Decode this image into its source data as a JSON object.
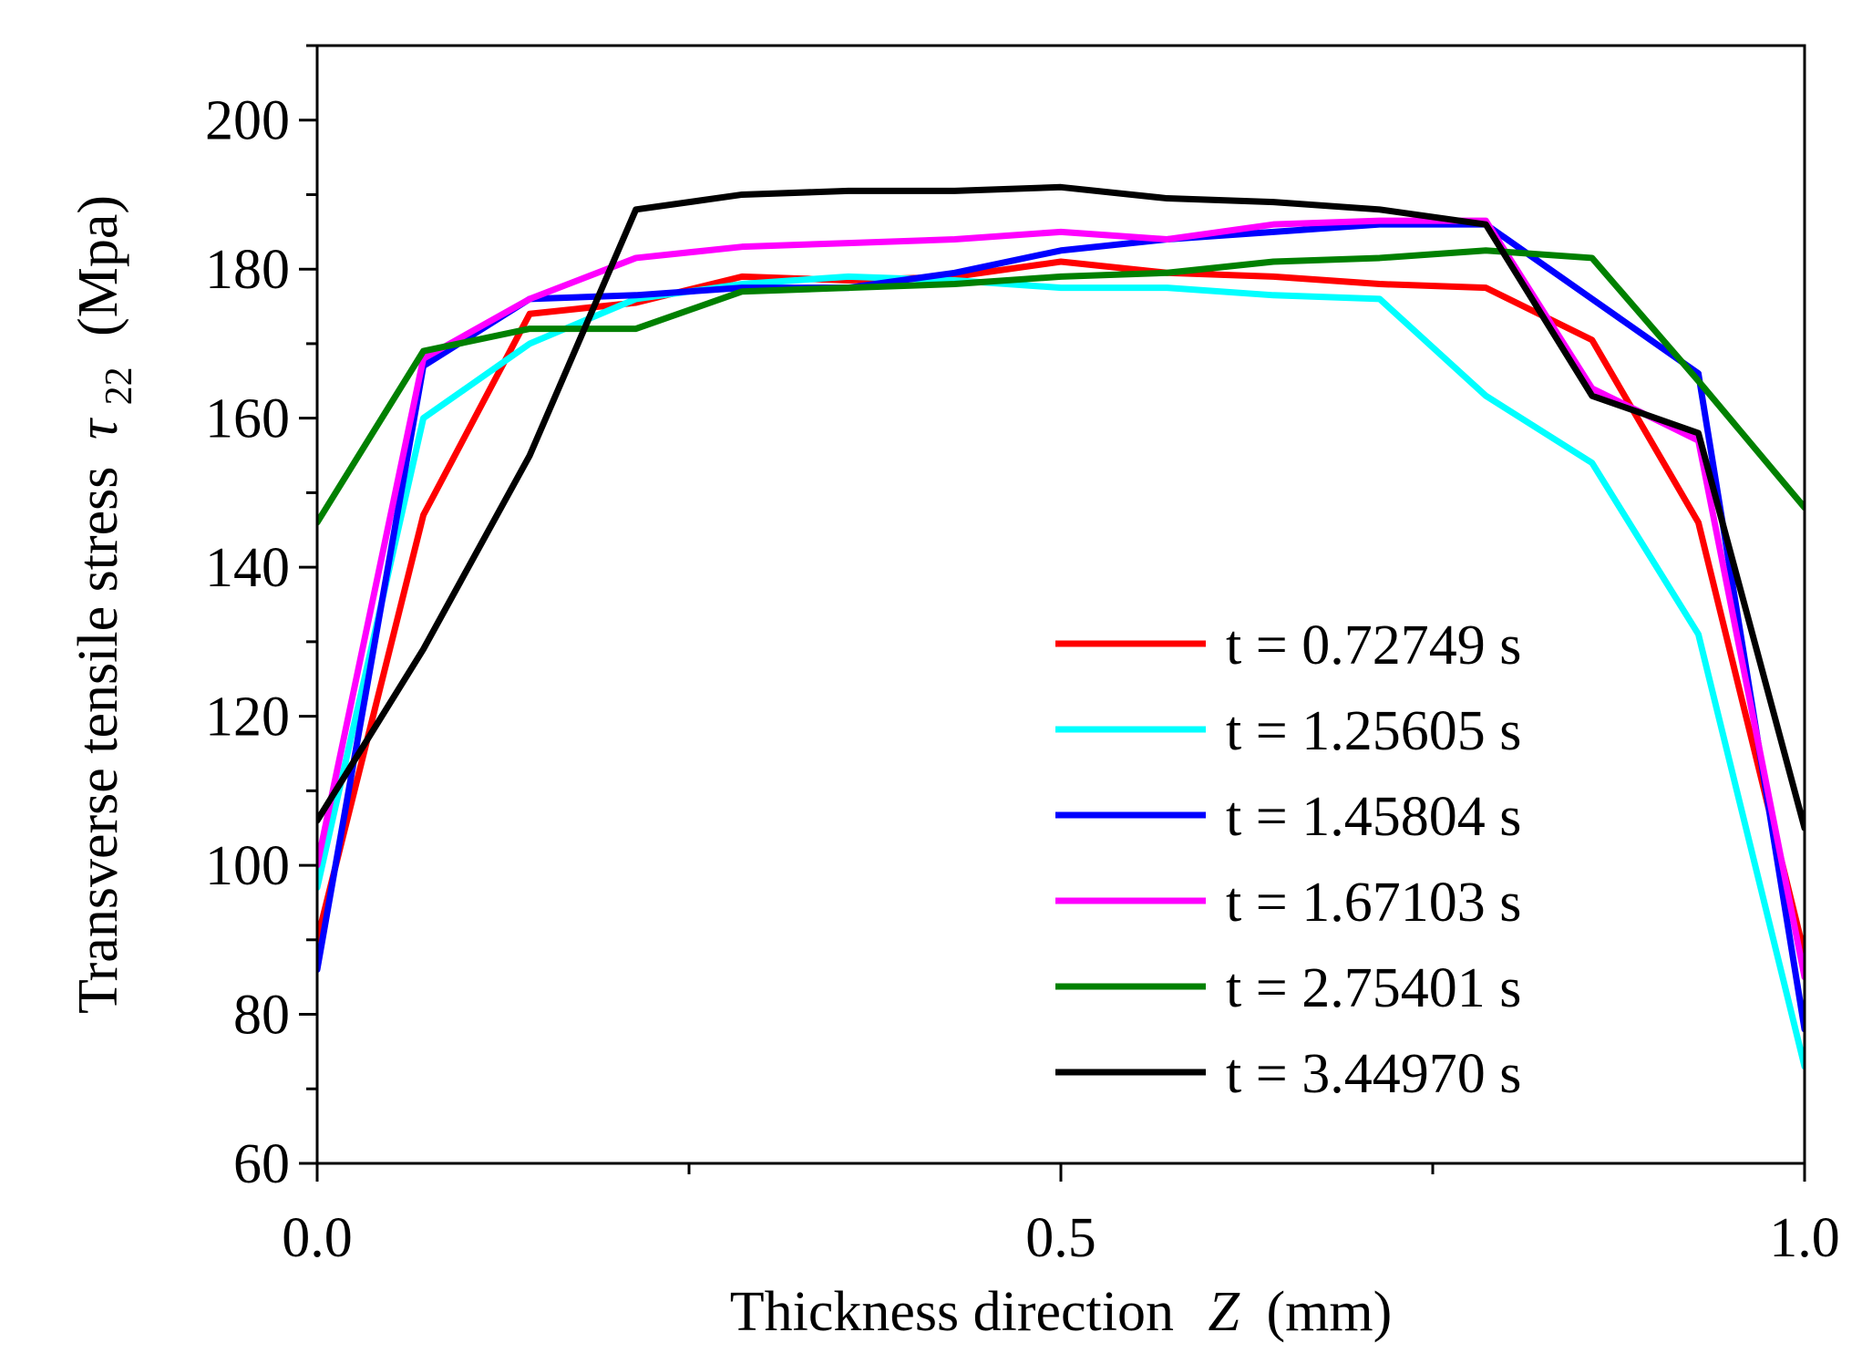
{
  "chart_data": {
    "type": "line",
    "title": "",
    "xlabel_prefix": "Thickness direction",
    "xlabel_var": "Z",
    "xlabel_unit": "(mm)",
    "ylabel_prefix": "Transverse tensile stress",
    "ylabel_symbol": "τ",
    "ylabel_subscript": "22",
    "ylabel_unit": "(Mpa)",
    "xlim": [
      0.0,
      1.0
    ],
    "ylim": [
      60,
      210
    ],
    "x_ticks": [
      "0.0",
      "0.5",
      "1.0"
    ],
    "y_ticks": [
      "60",
      "80",
      "100",
      "120",
      "140",
      "160",
      "180",
      "200"
    ],
    "grid": false,
    "legend_position": "bottom-right",
    "x": [
      0.0,
      0.0714,
      0.1429,
      0.2143,
      0.2857,
      0.3571,
      0.4286,
      0.5,
      0.5714,
      0.6429,
      0.7143,
      0.7857,
      0.8571,
      0.9286,
      1.0
    ],
    "series": [
      {
        "name": "t = 0.72749 s",
        "color": "#ff0000",
        "values": [
          90,
          147,
          174,
          175.5,
          179,
          178.5,
          179,
          181,
          179.5,
          179,
          178,
          177.5,
          170.5,
          146,
          88
        ]
      },
      {
        "name": "t = 1.25605 s",
        "color": "#00ffff",
        "values": [
          97,
          160,
          170,
          176,
          178,
          179,
          178.5,
          177.5,
          177.5,
          176.5,
          176,
          163,
          154,
          131,
          73
        ]
      },
      {
        "name": "t = 1.45804 s",
        "color": "#0000ff",
        "values": [
          86,
          167,
          176,
          176.5,
          177.5,
          177.5,
          179.5,
          182.5,
          184,
          185,
          186,
          186,
          176,
          166,
          78
        ]
      },
      {
        "name": "t = 1.67103 s",
        "color": "#ff00ff",
        "values": [
          100,
          168,
          176,
          181.5,
          183,
          183.5,
          184,
          185,
          184,
          186,
          186.5,
          186.5,
          164,
          157,
          85
        ]
      },
      {
        "name": "t = 2.75401 s",
        "color": "#008000",
        "values": [
          146,
          169,
          172,
          172,
          177,
          177.5,
          178,
          179,
          179.5,
          181,
          181.5,
          182.5,
          181.5,
          165,
          148
        ]
      },
      {
        "name": "t = 3.44970 s",
        "color": "#000000",
        "values": [
          106,
          129,
          155,
          188,
          190,
          190.5,
          190.5,
          191,
          189.5,
          189,
          188,
          186,
          163,
          158,
          105
        ]
      }
    ]
  }
}
